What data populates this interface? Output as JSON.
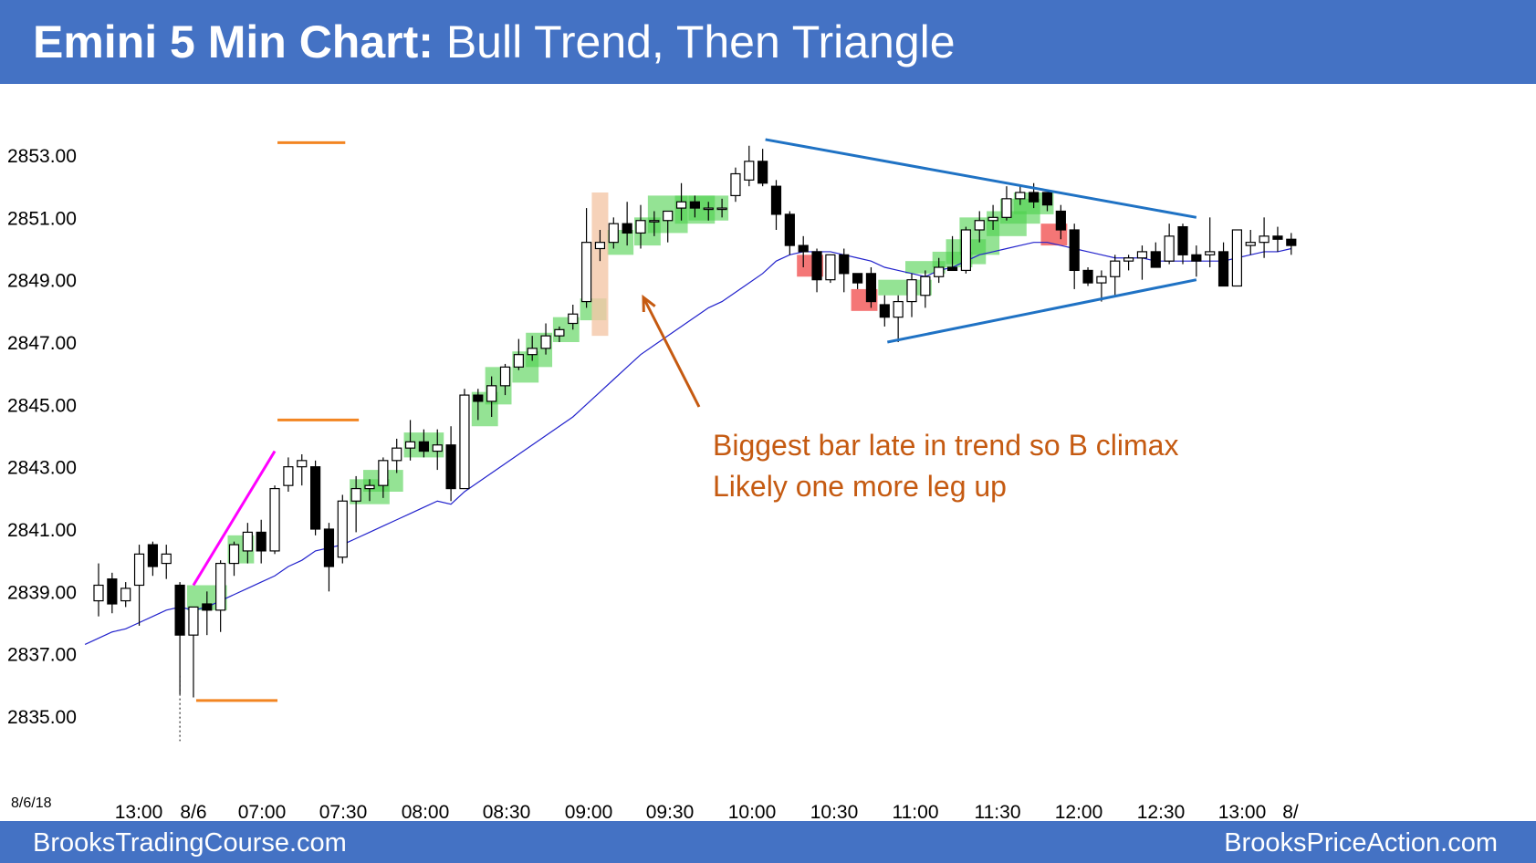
{
  "title": {
    "bold": "Emini 5 Min Chart:",
    "rest": " Bull Trend, Then Triangle"
  },
  "footer": {
    "left": "BrooksTradingCourse.com",
    "right": "BrooksPriceAction.com"
  },
  "date_label": "8/6/18",
  "annotation": {
    "line1": "Biggest bar late in trend so B climax",
    "line2": "Likely one more leg up"
  },
  "colors": {
    "header": "#4472c4",
    "ema": "#2222cc",
    "green_box": "#4cd14c",
    "red_box": "#f04848",
    "climax_box": "#f4c7a8",
    "orange": "#f28522",
    "magenta": "#ff00ff",
    "triangle": "#1f72c4",
    "annotation": "#c55a11"
  },
  "chart_data": {
    "type": "candlestick",
    "ylim": [
      2834.3,
      2855.7
    ],
    "y_ticks": [
      "2853.00",
      "2851.00",
      "2849.00",
      "2847.00",
      "2845.00",
      "2843.00",
      "2841.00",
      "2839.00",
      "2837.00",
      "2835.00"
    ],
    "x_ticks": [
      "13:00",
      "8/6",
      "07:00",
      "07:30",
      "08:00",
      "08:30",
      "09:00",
      "09:30",
      "10:00",
      "10:30",
      "11:00",
      "11:30",
      "12:00",
      "12:30",
      "13:00",
      "8/"
    ],
    "candles": [
      [
        2838.7,
        2839.9,
        2838.2,
        2839.2
      ],
      [
        2839.4,
        2839.6,
        2838.3,
        2838.6
      ],
      [
        2838.7,
        2839.3,
        2838.5,
        2839.1
      ],
      [
        2839.2,
        2840.5,
        2837.9,
        2840.2
      ],
      [
        2840.5,
        2840.6,
        2839.5,
        2839.8
      ],
      [
        2839.9,
        2840.5,
        2839.4,
        2840.2
      ],
      [
        2839.2,
        2839.3,
        2835.7,
        2837.6
      ],
      [
        2837.6,
        2838.5,
        2835.6,
        2838.5
      ],
      [
        2838.6,
        2839.0,
        2837.6,
        2838.4
      ],
      [
        2838.4,
        2840.0,
        2837.7,
        2839.9
      ],
      [
        2839.9,
        2840.6,
        2839.5,
        2840.5
      ],
      [
        2840.3,
        2841.2,
        2839.9,
        2840.9
      ],
      [
        2840.9,
        2841.3,
        2839.9,
        2840.3
      ],
      [
        2840.3,
        2842.4,
        2840.2,
        2842.3
      ],
      [
        2842.4,
        2843.3,
        2842.2,
        2843.0
      ],
      [
        2843.0,
        2843.4,
        2842.4,
        2843.2
      ],
      [
        2843.0,
        2843.2,
        2840.8,
        2841.0
      ],
      [
        2841.0,
        2841.2,
        2839.0,
        2839.8
      ],
      [
        2840.1,
        2842.1,
        2839.9,
        2841.9
      ],
      [
        2841.9,
        2842.7,
        2840.9,
        2842.3
      ],
      [
        2842.3,
        2842.6,
        2841.9,
        2842.4
      ],
      [
        2842.4,
        2843.3,
        2842.0,
        2843.2
      ],
      [
        2843.2,
        2843.9,
        2842.8,
        2843.6
      ],
      [
        2843.6,
        2844.5,
        2843.2,
        2843.8
      ],
      [
        2843.8,
        2844.2,
        2843.3,
        2843.5
      ],
      [
        2843.5,
        2844.2,
        2842.9,
        2843.7
      ],
      [
        2843.7,
        2844.3,
        2841.9,
        2842.3
      ],
      [
        2842.3,
        2845.5,
        2842.3,
        2845.3
      ],
      [
        2845.3,
        2845.5,
        2844.5,
        2845.1
      ],
      [
        2845.1,
        2845.9,
        2844.6,
        2845.6
      ],
      [
        2845.6,
        2846.3,
        2845.3,
        2846.2
      ],
      [
        2846.2,
        2847.1,
        2846.1,
        2846.6
      ],
      [
        2846.6,
        2847.2,
        2846.4,
        2846.8
      ],
      [
        2846.8,
        2847.6,
        2846.6,
        2847.2
      ],
      [
        2847.2,
        2847.5,
        2847.0,
        2847.4
      ],
      [
        2847.6,
        2848.2,
        2847.4,
        2847.9
      ],
      [
        2848.3,
        2851.3,
        2848.1,
        2850.2
      ],
      [
        2850.0,
        2850.6,
        2849.6,
        2850.2
      ],
      [
        2850.2,
        2851.0,
        2850.0,
        2850.8
      ],
      [
        2850.8,
        2851.5,
        2850.1,
        2850.5
      ],
      [
        2850.5,
        2851.4,
        2850.0,
        2850.9
      ],
      [
        2850.9,
        2851.2,
        2850.4,
        2850.9
      ],
      [
        2850.9,
        2851.2,
        2850.2,
        2851.2
      ],
      [
        2851.3,
        2852.1,
        2850.9,
        2851.5
      ],
      [
        2851.5,
        2851.7,
        2851.0,
        2851.3
      ],
      [
        2851.3,
        2851.5,
        2850.9,
        2851.3
      ],
      [
        2851.3,
        2851.6,
        2851.0,
        2851.3
      ],
      [
        2851.7,
        2852.6,
        2851.5,
        2852.4
      ],
      [
        2852.2,
        2853.3,
        2852.0,
        2852.8
      ],
      [
        2852.8,
        2853.2,
        2852.0,
        2852.1
      ],
      [
        2852.0,
        2852.2,
        2850.6,
        2851.1
      ],
      [
        2851.1,
        2851.2,
        2849.8,
        2850.1
      ],
      [
        2850.1,
        2850.4,
        2849.4,
        2849.9
      ],
      [
        2849.9,
        2850.0,
        2848.6,
        2849.0
      ],
      [
        2849.0,
        2849.8,
        2848.9,
        2849.8
      ],
      [
        2849.8,
        2850.0,
        2848.6,
        2849.2
      ],
      [
        2849.2,
        2849.2,
        2848.7,
        2848.9
      ],
      [
        2849.2,
        2849.4,
        2848.1,
        2848.3
      ],
      [
        2848.2,
        2848.5,
        2847.5,
        2847.8
      ],
      [
        2847.8,
        2848.5,
        2847.0,
        2848.3
      ],
      [
        2848.3,
        2849.2,
        2847.8,
        2849.0
      ],
      [
        2848.5,
        2849.3,
        2848.1,
        2849.1
      ],
      [
        2849.1,
        2849.7,
        2848.9,
        2849.4
      ],
      [
        2849.4,
        2850.4,
        2849.3,
        2849.3
      ],
      [
        2849.3,
        2850.7,
        2849.2,
        2850.6
      ],
      [
        2850.6,
        2851.2,
        2850.2,
        2850.9
      ],
      [
        2850.9,
        2851.4,
        2850.6,
        2851.0
      ],
      [
        2851.0,
        2852.0,
        2850.9,
        2851.6
      ],
      [
        2851.6,
        2852.0,
        2851.4,
        2851.8
      ],
      [
        2851.8,
        2852.1,
        2851.3,
        2851.5
      ],
      [
        2851.8,
        2851.8,
        2851.2,
        2851.4
      ],
      [
        2851.2,
        2851.4,
        2850.3,
        2850.6
      ],
      [
        2850.6,
        2850.8,
        2848.7,
        2849.3
      ],
      [
        2849.3,
        2849.4,
        2848.8,
        2848.9
      ],
      [
        2848.9,
        2849.3,
        2848.3,
        2849.1
      ],
      [
        2849.1,
        2849.8,
        2848.5,
        2849.6
      ],
      [
        2849.6,
        2849.8,
        2849.3,
        2849.7
      ],
      [
        2849.7,
        2850.1,
        2849.0,
        2849.9
      ],
      [
        2849.9,
        2850.2,
        2849.4,
        2849.4
      ],
      [
        2849.6,
        2850.8,
        2849.5,
        2850.4
      ],
      [
        2850.7,
        2850.8,
        2849.5,
        2849.8
      ],
      [
        2849.8,
        2850.1,
        2849.1,
        2849.6
      ],
      [
        2849.8,
        2851.0,
        2849.4,
        2849.9
      ],
      [
        2849.9,
        2850.2,
        2848.8,
        2848.8
      ],
      [
        2848.8,
        2850.6,
        2848.8,
        2850.6
      ],
      [
        2850.1,
        2850.6,
        2849.8,
        2850.2
      ],
      [
        2850.2,
        2851.0,
        2849.7,
        2850.4
      ],
      [
        2850.4,
        2850.7,
        2849.9,
        2850.3
      ],
      [
        2850.3,
        2850.5,
        2849.8,
        2850.1
      ]
    ],
    "ema": [
      2837.5,
      2837.7,
      2837.8,
      2838.0,
      2838.2,
      2838.4,
      2838.5,
      2838.4,
      2838.5,
      2838.7,
      2838.9,
      2839.1,
      2839.3,
      2839.5,
      2839.8,
      2840.0,
      2840.3,
      2840.4,
      2840.5,
      2840.7,
      2840.9,
      2841.1,
      2841.3,
      2841.5,
      2841.7,
      2841.9,
      2841.8,
      2842.2,
      2842.5,
      2842.8,
      2843.1,
      2843.4,
      2843.7,
      2844.0,
      2844.3,
      2844.6,
      2845.0,
      2845.4,
      2845.8,
      2846.2,
      2846.6,
      2846.9,
      2847.2,
      2847.5,
      2847.8,
      2848.1,
      2848.3,
      2848.6,
      2848.9,
      2849.2,
      2849.6,
      2849.8,
      2849.9,
      2849.9,
      2849.9,
      2849.8,
      2849.7,
      2849.6,
      2849.4,
      2849.3,
      2849.2,
      2849.1,
      2849.3,
      2849.4,
      2849.6,
      2849.8,
      2849.9,
      2850.0,
      2850.1,
      2850.2,
      2850.2,
      2850.1,
      2850.0,
      2849.9,
      2849.8,
      2849.7,
      2849.7,
      2849.7,
      2849.6,
      2849.6,
      2849.6,
      2849.6,
      2849.6,
      2849.6,
      2849.7,
      2849.8,
      2849.9,
      2849.9,
      2850.0
    ],
    "green_boxes": [
      [
        7,
        9,
        2838.4,
        2839.2
      ],
      [
        10,
        11,
        2839.9,
        2840.8
      ],
      [
        19,
        21,
        2841.8,
        2842.6
      ],
      [
        20,
        22,
        2842.2,
        2842.9
      ],
      [
        23,
        25,
        2843.3,
        2844.1
      ],
      [
        28,
        29,
        2844.3,
        2845.4
      ],
      [
        29,
        30,
        2845.0,
        2846.2
      ],
      [
        31,
        32,
        2845.7,
        2846.7
      ],
      [
        32,
        33,
        2846.2,
        2847.3
      ],
      [
        34,
        35,
        2847.0,
        2847.8
      ],
      [
        36,
        37,
        2847.7,
        2848.4
      ],
      [
        38,
        39,
        2849.8,
        2850.6
      ],
      [
        40,
        41,
        2850.1,
        2851.0
      ],
      [
        41,
        43,
        2850.5,
        2851.7
      ],
      [
        43,
        45,
        2850.8,
        2851.7
      ],
      [
        44,
        46,
        2850.9,
        2851.7
      ],
      [
        58,
        61,
        2848.5,
        2849.0
      ],
      [
        60,
        62,
        2849.2,
        2849.6
      ],
      [
        62,
        64,
        2849.4,
        2849.9
      ],
      [
        63,
        65,
        2849.5,
        2850.3
      ],
      [
        64,
        66,
        2849.8,
        2851.0
      ],
      [
        66,
        68,
        2850.4,
        2851.2
      ],
      [
        67,
        69,
        2850.8,
        2851.6
      ],
      [
        68,
        70,
        2851.1,
        2851.8
      ]
    ],
    "red_boxes": [
      [
        52,
        53,
        2849.1,
        2849.8
      ],
      [
        56,
        57,
        2848.0,
        2848.7
      ],
      [
        70,
        71,
        2850.1,
        2850.8
      ]
    ],
    "climax_box": [
      37,
      2847.2,
      2851.8
    ],
    "orange_lines": [
      [
        13,
        18,
        2853.4
      ],
      [
        13,
        19,
        2844.5
      ],
      [
        7,
        13,
        2835.5
      ]
    ],
    "magenta_line": [
      [
        7,
        2839.2
      ],
      [
        13,
        2843.5
      ]
    ],
    "triangle_lines": [
      [
        [
          49,
          2853.5
        ],
        [
          81,
          2851.0
        ]
      ],
      [
        [
          58,
          2847.0
        ],
        [
          81,
          2849.0
        ]
      ]
    ]
  }
}
